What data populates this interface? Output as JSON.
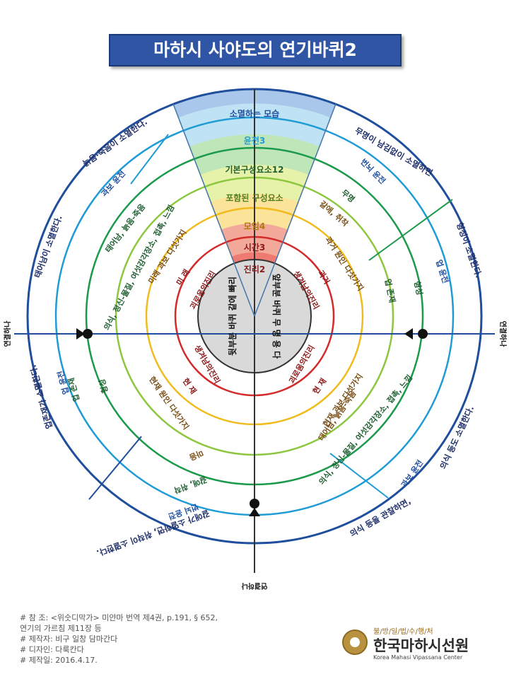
{
  "title": "마하시 사야도의 연기바퀴2",
  "colors": {
    "blue": "#1f9bd6",
    "green": "#1a9a4a",
    "lightgreen": "#8dc63f",
    "yellow": "#f1bb1c",
    "red": "#d42a2a",
    "darkblue": "#1f4e9c",
    "text_green": "#1f5f32",
    "text_red": "#8b1a1a",
    "text_brown": "#7a4f16"
  },
  "wheel": {
    "center_left": "뒷부분 바퀴 같에 빠리",
    "center_right": "앞부분 바퀴 무 명 용 다",
    "ring_labels": [
      "진리2",
      "시간3",
      "모임4",
      "포함된 구성요소",
      "기본구성요소12",
      "윤전3",
      "소멸하는 모습"
    ],
    "truth": [
      "괴로움의진리",
      "생겨남의진리",
      "생겨남의진리",
      "괴로움의진리"
    ],
    "time": [
      "미 래",
      "과거",
      "현 재",
      "현 재"
    ],
    "groups": [
      "미래 과보 다섯가지",
      "과거 원인 다섯가지",
      "현재 과보 다섯가지",
      "현재 원인 다섯가지"
    ],
    "links": {
      "upper_right": [
        "무명",
        "갈애, 취착"
      ],
      "right": [
        "업 존재",
        "형성"
      ],
      "lower_right": [
        "의식, 정신-물질, 여섯감각장소, 접촉, 느낌"
      ],
      "bottom_right": [
        "태어남, 늙음-죽음"
      ],
      "bottom": [
        "갈애, 취착"
      ],
      "bottom_left": [
        "마음"
      ],
      "left": [
        "업 존재",
        "형성"
      ],
      "upper_left": [
        "의식, 정신-물질, 여섯감각장소, 접촉, 느낌",
        "태어남, 늙음-죽음"
      ]
    },
    "rounds": [
      "번뇌 윤전",
      "업 윤전",
      "과보 윤전",
      "업 윤전",
      "번뇌 윤전",
      "과보 윤전"
    ],
    "cessation": [
      "무명이 남김없이 소멸하면",
      "형성이 소멸한다.",
      "의식 등도 소멸한다.",
      "의식 등을 관찰하면,",
      "갈애가 소멸하면, 취착이 소멸한다.",
      "업존재가 소멸한다.",
      "태어남이 소멸한다.",
      "늙음·죽음이 소멸한다."
    ],
    "connections": [
      "연결하나",
      "연결하나",
      "연결하나"
    ]
  },
  "notes": [
    "# 참   조: <위숫디막가> 미얀마 번역 제4권, p.191, § 652,",
    "            연기의 가르침 제11장 등",
    "# 제작자: 비구 일창 담마간다",
    "# 디자인: 다룩칸다",
    "# 제작일: 2016.4.17."
  ],
  "logo": {
    "tagline": "불/방/일/법/수/행/처",
    "name": "한국마하시선원",
    "english": "Korea Mahasi Vipassana Center"
  }
}
